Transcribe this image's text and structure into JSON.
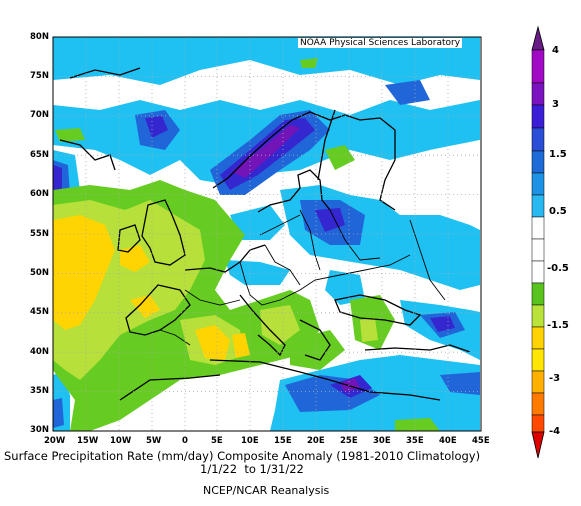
{
  "map": {
    "credit": "NOAA Physical Sciences Laboratory",
    "lat_labels": [
      "80N",
      "75N",
      "70N",
      "65N",
      "60N",
      "55N",
      "50N",
      "45N",
      "40N",
      "35N",
      "30N"
    ],
    "lon_labels": [
      "20W",
      "15W",
      "10W",
      "5W",
      "0",
      "5E",
      "10E",
      "15E",
      "20E",
      "25E",
      "30E",
      "35E",
      "40E",
      "45E"
    ],
    "extent": {
      "lon_min": -20,
      "lon_max": 45,
      "lat_min": 30,
      "lat_max": 80
    }
  },
  "titles": {
    "line1": "Surface Precipitation Rate (mm/day) Composite Anomaly (1981-2010 Climatology)",
    "line2": "1/1/22  to 1/31/22",
    "line3": "NCEP/NCAR Reanalysis"
  },
  "colorbar": {
    "labels": [
      "4",
      "3",
      "1.5",
      "0.5",
      "-0.5",
      "-1.5",
      "-3",
      "-4"
    ],
    "colors": [
      "#6a1c86",
      "#a00ac4",
      "#3a1fd6",
      "#1e6ad6",
      "#29b9f0",
      "#ffffff",
      "#58c31c",
      "#b9e23a",
      "#ffd200",
      "#ff9c00",
      "#ff4a00",
      "#dd0000"
    ]
  },
  "palette": {
    "blue_light": "#1fc0f2",
    "blue_mid": "#2166d9",
    "indigo": "#3527d0",
    "purple": "#7314b8",
    "green": "#66cc22",
    "yellow_green": "#b7e03a",
    "yellow": "#ffd400"
  }
}
